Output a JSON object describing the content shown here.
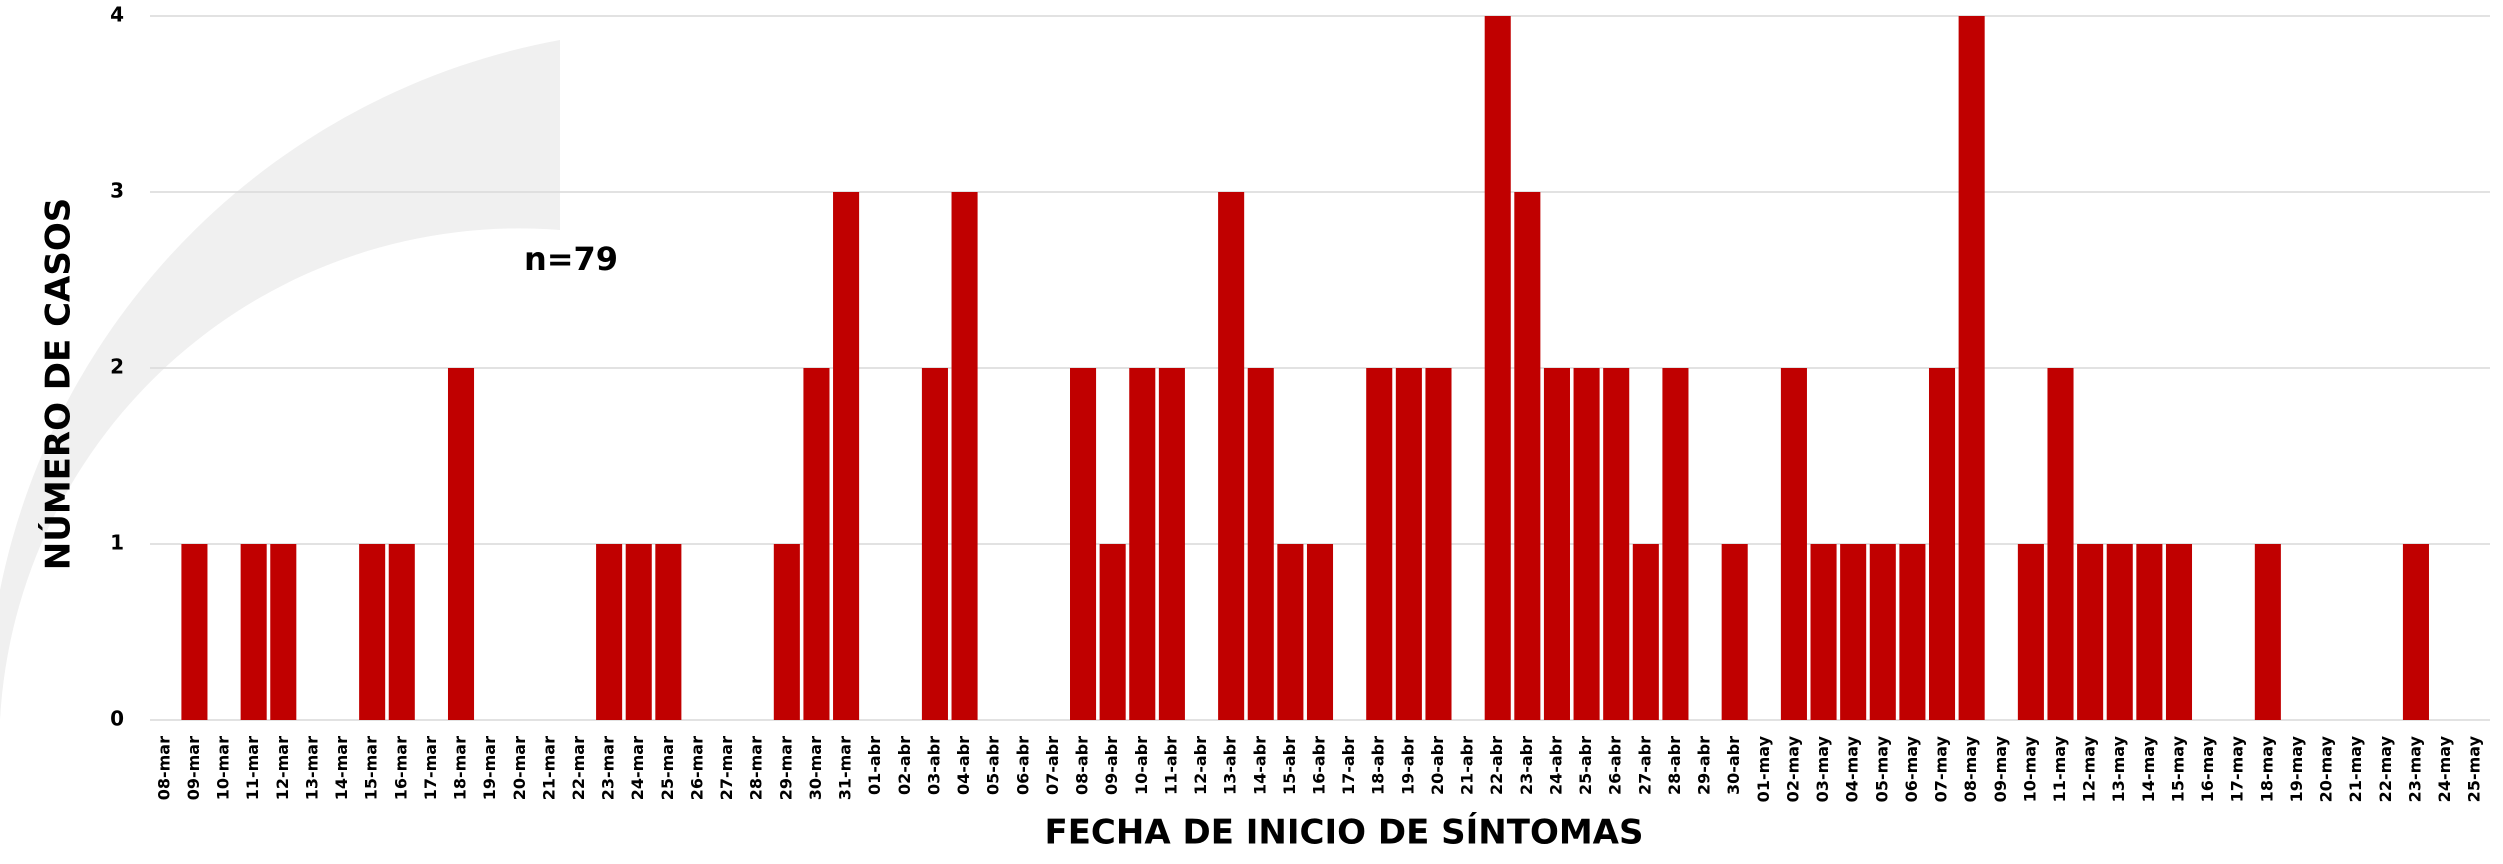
{
  "chart_data": {
    "type": "bar",
    "annotation": "n=79",
    "x_label": "FECHA DE INICIO DE SÍNTOMAS",
    "y_label": "NÚMERO DE CASOS",
    "color": "#c00000",
    "grid": true,
    "ylim": [
      0,
      4
    ],
    "yticks": [
      0,
      1,
      2,
      3,
      4
    ],
    "categories": [
      "08-mar",
      "09-mar",
      "10-mar",
      "11-mar",
      "12-mar",
      "13-mar",
      "14-mar",
      "15-mar",
      "16-mar",
      "17-mar",
      "18-mar",
      "19-mar",
      "20-mar",
      "21-mar",
      "22-mar",
      "23-mar",
      "24-mar",
      "25-mar",
      "26-mar",
      "27-mar",
      "28-mar",
      "29-mar",
      "30-mar",
      "31-mar",
      "01-abr",
      "02-abr",
      "03-abr",
      "04-abr",
      "05-abr",
      "06-abr",
      "07-abr",
      "08-abr",
      "09-abr",
      "10-abr",
      "11-abr",
      "12-abr",
      "13-abr",
      "14-abr",
      "15-abr",
      "16-abr",
      "17-abr",
      "18-abr",
      "19-abr",
      "20-abr",
      "21-abr",
      "22-abr",
      "23-abr",
      "24-abr",
      "25-abr",
      "26-abr",
      "27-abr",
      "28-abr",
      "29-abr",
      "30-abr",
      "01-may",
      "02-may",
      "03-may",
      "04-may",
      "05-may",
      "06-may",
      "07-may",
      "08-may",
      "09-may",
      "10-may",
      "11-may",
      "12-may",
      "13-may",
      "14-may",
      "15-may",
      "16-may",
      "17-may",
      "18-may",
      "19-may",
      "20-may",
      "21-may",
      "22-may",
      "23-may",
      "24-may",
      "25-may"
    ],
    "values": [
      0,
      1,
      0,
      1,
      1,
      0,
      0,
      1,
      1,
      0,
      2,
      0,
      0,
      0,
      0,
      1,
      1,
      1,
      0,
      0,
      0,
      1,
      2,
      3,
      0,
      0,
      2,
      3,
      0,
      0,
      0,
      2,
      1,
      2,
      2,
      0,
      3,
      2,
      1,
      1,
      0,
      2,
      2,
      2,
      0,
      4,
      3,
      2,
      2,
      2,
      1,
      2,
      0,
      1,
      0,
      2,
      1,
      1,
      1,
      1,
      2,
      4,
      0,
      1,
      2,
      1,
      1,
      1,
      1,
      0,
      0,
      1,
      0,
      0,
      0,
      0,
      1,
      0,
      0
    ]
  }
}
